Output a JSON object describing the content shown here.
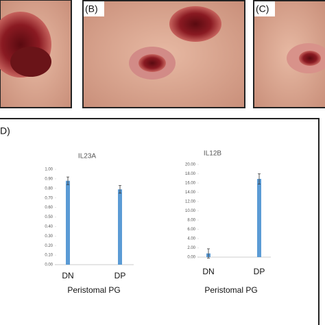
{
  "panel_labels": [
    "(B)",
    "(C)",
    "D)"
  ],
  "chart_data": [
    {
      "type": "bar",
      "title": "IL23A",
      "x_label": "Peristomal PG",
      "categories": [
        "DN",
        "DP"
      ],
      "values": [
        0.88,
        0.79
      ],
      "errors": [
        0.04,
        0.04
      ],
      "color": "#5b9bd5",
      "ylim": [
        0,
        1
      ],
      "yticks": [
        {
          "value": 0,
          "label": "0.00"
        },
        {
          "value": 0.1,
          "label": "0.10"
        },
        {
          "value": 0.2,
          "label": "0.20"
        },
        {
          "value": 0.3,
          "label": "0.30"
        },
        {
          "value": 0.4,
          "label": "0.40"
        },
        {
          "value": 0.5,
          "label": "0.50"
        },
        {
          "value": 0.6,
          "label": "0.60"
        },
        {
          "value": 0.7,
          "label": "0.70"
        },
        {
          "value": 0.8,
          "label": "0.80"
        },
        {
          "value": 0.9,
          "label": "0.90"
        },
        {
          "value": 1,
          "label": "1.00"
        }
      ]
    },
    {
      "type": "bar",
      "title": "IL12B",
      "x_label": "Peristomal PG",
      "categories": [
        "DN",
        "DP"
      ],
      "values": [
        0.8,
        16.9
      ],
      "errors": [
        1.0,
        1.1
      ],
      "color": "#5b9bd5",
      "ylim": [
        0,
        20
      ],
      "yticks": [
        {
          "value": 0,
          "label": "0.00"
        },
        {
          "value": 2,
          "label": "2.00"
        },
        {
          "value": 4,
          "label": "4.00"
        },
        {
          "value": 6,
          "label": "6.00"
        },
        {
          "value": 8,
          "label": "8.00"
        },
        {
          "value": 10,
          "label": "10.00"
        },
        {
          "value": 12,
          "label": "12.00"
        },
        {
          "value": 14,
          "label": "14.00"
        },
        {
          "value": 16,
          "label": "16.00"
        },
        {
          "value": 18,
          "label": "18.00"
        },
        {
          "value": 20,
          "label": "20.00"
        }
      ]
    }
  ]
}
